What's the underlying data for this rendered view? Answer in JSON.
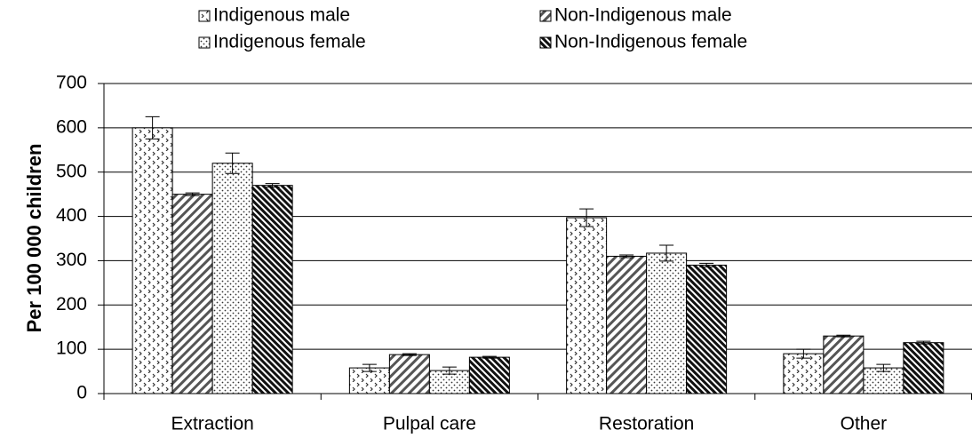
{
  "chart_data": {
    "type": "bar",
    "ylabel": "Per 100 000 children",
    "categories": [
      "Extraction",
      "Pulpal care",
      "Restoration",
      "Other"
    ],
    "series": [
      {
        "name": "Indigenous male",
        "pattern": "zigzag",
        "values": [
          600,
          58,
          397,
          90
        ],
        "errors": [
          25,
          8,
          20,
          10
        ]
      },
      {
        "name": "Non-Indigenous male",
        "pattern": "diagonal",
        "values": [
          450,
          88,
          310,
          130
        ],
        "errors": [
          3,
          2,
          3,
          2
        ]
      },
      {
        "name": "Indigenous female",
        "pattern": "dots",
        "values": [
          520,
          52,
          317,
          58
        ],
        "errors": [
          23,
          8,
          18,
          8
        ]
      },
      {
        "name": "Non-Indigenous female",
        "pattern": "dense-diagonal",
        "values": [
          470,
          82,
          290,
          115
        ],
        "errors": [
          4,
          2,
          4,
          3
        ]
      }
    ],
    "ylim": [
      0,
      700
    ],
    "yticks": [
      0,
      100,
      200,
      300,
      400,
      500,
      600,
      700
    ],
    "grid": true,
    "legend": "top"
  }
}
